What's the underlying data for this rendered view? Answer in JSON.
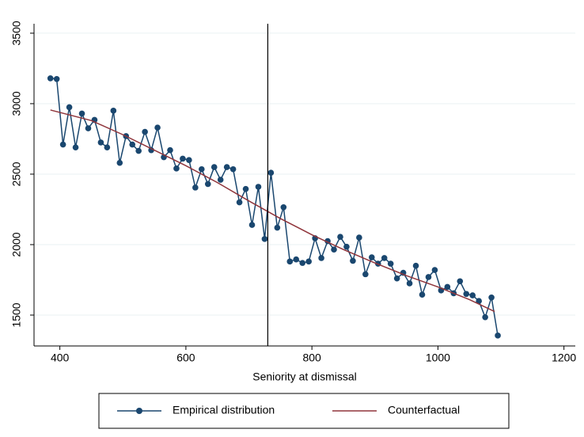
{
  "chart_data": {
    "type": "line",
    "xlabel": "Seniority at dismissal",
    "xlim": [
      359,
      1218
    ],
    "ylim": [
      1281,
      3567
    ],
    "xticks": [
      400,
      600,
      800,
      1000,
      1200
    ],
    "yticks": [
      1500,
      2000,
      2500,
      3000,
      3500
    ],
    "grid": true,
    "vline": 730,
    "legend": "bottom",
    "series": [
      {
        "name": "Empirical distribution",
        "color": "#1a476f",
        "marker": true,
        "x": [
          385,
          395,
          405,
          415,
          425,
          435,
          445,
          455,
          465,
          475,
          485,
          495,
          505,
          515,
          525,
          535,
          545,
          555,
          565,
          575,
          585,
          595,
          605,
          615,
          625,
          635,
          645,
          655,
          665,
          675,
          685,
          695,
          705,
          715,
          725,
          735,
          745,
          755,
          765,
          775,
          785,
          795,
          805,
          815,
          825,
          835,
          845,
          855,
          865,
          875,
          885,
          895,
          905,
          915,
          925,
          935,
          945,
          955,
          965,
          975,
          985,
          995,
          1005,
          1015,
          1025,
          1035,
          1045,
          1055,
          1065,
          1075,
          1085,
          1095
        ],
        "values": [
          3180,
          3175,
          2710,
          2975,
          2690,
          2930,
          2825,
          2885,
          2725,
          2690,
          2950,
          2580,
          2770,
          2710,
          2665,
          2800,
          2670,
          2830,
          2620,
          2670,
          2540,
          2610,
          2600,
          2405,
          2535,
          2430,
          2550,
          2460,
          2550,
          2535,
          2300,
          2395,
          2140,
          2410,
          2040,
          2510,
          2120,
          2265,
          1880,
          1895,
          1870,
          1880,
          2045,
          1905,
          2025,
          1965,
          2055,
          1985,
          1885,
          2050,
          1790,
          1910,
          1865,
          1905,
          1865,
          1760,
          1800,
          1725,
          1850,
          1645,
          1770,
          1820,
          1675,
          1700,
          1655,
          1740,
          1650,
          1640,
          1600,
          1485,
          1625,
          1355
        ]
      },
      {
        "name": "Counterfactual",
        "color": "#90353b",
        "marker": false,
        "x": [
          385,
          450,
          500,
          550,
          600,
          650,
          700,
          750,
          800,
          850,
          900,
          950,
          1000,
          1050,
          1090
        ],
        "values": [
          2955,
          2880,
          2780,
          2670,
          2560,
          2440,
          2310,
          2185,
          2070,
          1965,
          1870,
          1780,
          1700,
          1610,
          1525
        ]
      }
    ]
  }
}
